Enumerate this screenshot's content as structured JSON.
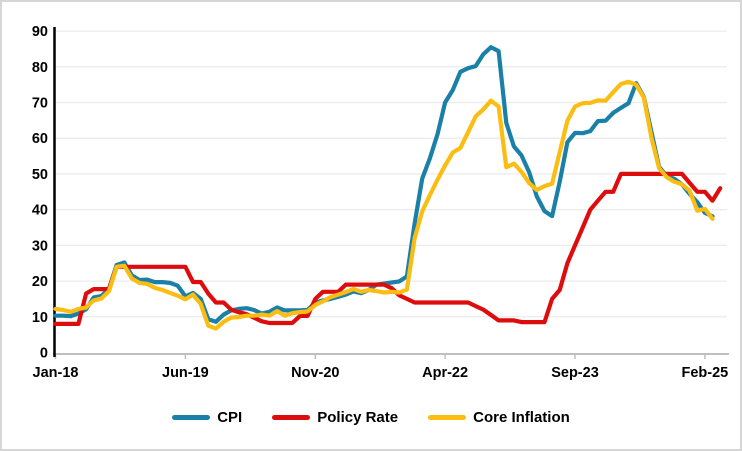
{
  "chart_data": {
    "type": "line",
    "grid": "horizontal",
    "legend_position": "bottom",
    "ylim": [
      0,
      90
    ],
    "y_ticks": [
      0,
      10,
      20,
      30,
      40,
      50,
      60,
      70,
      80,
      90
    ],
    "x_tick_labels": [
      "Jan-18",
      "Jun-19",
      "Nov-20",
      "Apr-22",
      "Sep-23",
      "Feb-25"
    ],
    "x_tick_month_indices": [
      0,
      17,
      34,
      51,
      68,
      85
    ],
    "months": [
      "Jan-18",
      "Feb-18",
      "Mar-18",
      "Apr-18",
      "May-18",
      "Jun-18",
      "Jul-18",
      "Aug-18",
      "Sep-18",
      "Oct-18",
      "Nov-18",
      "Dec-18",
      "Jan-19",
      "Feb-19",
      "Mar-19",
      "Apr-19",
      "May-19",
      "Jun-19",
      "Jul-19",
      "Aug-19",
      "Sep-19",
      "Oct-19",
      "Nov-19",
      "Dec-19",
      "Jan-20",
      "Feb-20",
      "Mar-20",
      "Apr-20",
      "May-20",
      "Jun-20",
      "Jul-20",
      "Aug-20",
      "Sep-20",
      "Oct-20",
      "Nov-20",
      "Dec-20",
      "Jan-21",
      "Feb-21",
      "Mar-21",
      "Apr-21",
      "May-21",
      "Jun-21",
      "Jul-21",
      "Aug-21",
      "Sep-21",
      "Oct-21",
      "Nov-21",
      "Dec-21",
      "Jan-22",
      "Feb-22",
      "Mar-22",
      "Apr-22",
      "May-22",
      "Jun-22",
      "Jul-22",
      "Aug-22",
      "Sep-22",
      "Oct-22",
      "Nov-22",
      "Dec-22",
      "Jan-23",
      "Feb-23",
      "Mar-23",
      "Apr-23",
      "May-23",
      "Jun-23",
      "Jul-23",
      "Aug-23",
      "Sep-23",
      "Oct-23",
      "Nov-23",
      "Dec-23",
      "Jan-24",
      "Feb-24",
      "Mar-24",
      "Apr-24",
      "May-24",
      "Jun-24",
      "Jul-24",
      "Aug-24",
      "Sep-24",
      "Oct-24",
      "Nov-24",
      "Dec-24",
      "Jan-25",
      "Feb-25",
      "Mar-25",
      "Apr-25"
    ],
    "series": [
      {
        "name": "CPI",
        "color": "#1b80a8",
        "values": [
          10.3,
          10.3,
          10.2,
          10.9,
          12.1,
          15.4,
          15.8,
          17.9,
          24.5,
          25.2,
          21.6,
          20.3,
          20.4,
          19.7,
          19.7,
          19.5,
          18.7,
          15.7,
          16.7,
          15.0,
          9.3,
          8.6,
          10.6,
          11.8,
          12.2,
          12.4,
          11.9,
          10.9,
          11.4,
          12.6,
          11.8,
          11.8,
          11.8,
          11.9,
          14.0,
          14.6,
          15.0,
          15.6,
          16.2,
          17.1,
          16.6,
          17.5,
          19.0,
          19.3,
          19.6,
          19.9,
          21.3,
          36.1,
          48.7,
          54.4,
          61.1,
          70.0,
          73.5,
          78.6,
          79.6,
          80.2,
          83.5,
          85.5,
          84.4,
          64.3,
          57.7,
          55.2,
          50.5,
          43.7,
          39.6,
          38.2,
          47.8,
          58.9,
          61.5,
          61.4,
          62.0,
          64.8,
          64.9,
          67.1,
          68.5,
          69.8,
          75.4,
          71.6,
          61.8,
          52.0,
          49.4,
          48.6,
          47.1,
          44.4,
          42.1,
          39.1,
          38.1,
          null
        ]
      },
      {
        "name": "Policy Rate",
        "color": "#de0d0d",
        "values": [
          8.0,
          8.0,
          8.0,
          8.0,
          16.5,
          17.75,
          17.75,
          17.75,
          24.0,
          24.0,
          24.0,
          24.0,
          24.0,
          24.0,
          24.0,
          24.0,
          24.0,
          24.0,
          19.75,
          19.75,
          16.5,
          14.0,
          14.0,
          12.0,
          11.25,
          10.75,
          9.75,
          8.75,
          8.25,
          8.25,
          8.25,
          8.25,
          10.25,
          10.25,
          15.0,
          17.0,
          17.0,
          17.0,
          19.0,
          19.0,
          19.0,
          19.0,
          19.0,
          19.0,
          18.0,
          16.0,
          15.0,
          14.0,
          14.0,
          14.0,
          14.0,
          14.0,
          14.0,
          14.0,
          14.0,
          13.0,
          12.0,
          10.5,
          9.0,
          9.0,
          9.0,
          8.5,
          8.5,
          8.5,
          8.5,
          15.0,
          17.5,
          25.0,
          30.0,
          35.0,
          40.0,
          42.5,
          45.0,
          45.0,
          50.0,
          50.0,
          50.0,
          50.0,
          50.0,
          50.0,
          50.0,
          50.0,
          50.0,
          47.5,
          45.0,
          45.0,
          42.5,
          46.0
        ]
      },
      {
        "name": "Core Inflation",
        "color": "#fcbd12",
        "values": [
          12.2,
          11.9,
          11.4,
          12.2,
          12.6,
          14.6,
          15.1,
          17.2,
          24.0,
          24.3,
          20.7,
          19.5,
          19.2,
          18.1,
          17.5,
          16.7,
          15.9,
          14.9,
          16.2,
          13.6,
          7.5,
          6.7,
          8.6,
          9.8,
          9.9,
          10.3,
          10.3,
          10.6,
          10.3,
          11.6,
          10.3,
          11.0,
          11.3,
          11.5,
          13.3,
          14.3,
          15.5,
          16.2,
          16.9,
          17.8,
          17.0,
          17.5,
          17.2,
          16.8,
          17.0,
          16.8,
          17.6,
          31.9,
          39.5,
          44.1,
          48.4,
          52.4,
          56.0,
          57.3,
          61.7,
          66.1,
          68.1,
          70.5,
          68.9,
          51.9,
          52.9,
          50.6,
          47.4,
          45.5,
          46.6,
          47.3,
          56.1,
          64.9,
          68.9,
          69.8,
          69.9,
          70.6,
          70.5,
          72.9,
          75.2,
          75.8,
          75.0,
          71.4,
          60.2,
          51.6,
          49.1,
          47.8,
          47.1,
          45.3,
          39.7,
          40.2,
          37.4,
          null
        ]
      }
    ]
  }
}
